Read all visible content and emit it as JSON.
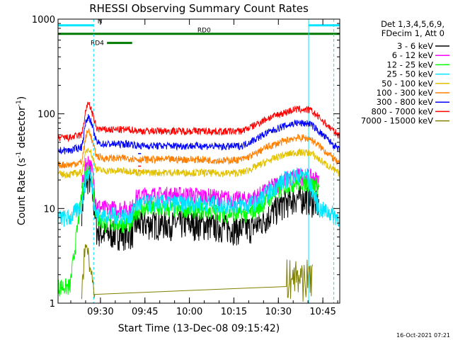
{
  "chart_data": {
    "type": "line",
    "title": "RHESSI Observing Summary Count Rates",
    "xlabel": "Start Time (13-Dec-08 09:15:42)",
    "ylabel_main": "Count Rate (s",
    "ylabel_sup1": "-1",
    "ylabel_mid": " detector",
    "ylabel_sup2": "-1",
    "ylabel_end": ")",
    "footer_stamp": "16-Oct-2021 07:21",
    "x_unit": "minutes after 09:15:42",
    "xlim": [
      0,
      95
    ],
    "ylim": [
      1,
      1000
    ],
    "yscale": "log",
    "x_ticks": [
      {
        "label": "09:30",
        "x": 14.3
      },
      {
        "label": "09:45",
        "x": 29.3
      },
      {
        "label": "10:00",
        "x": 44.3
      },
      {
        "label": "10:15",
        "x": 59.3
      },
      {
        "label": "10:30",
        "x": 74.3
      },
      {
        "label": "10:45",
        "x": 89.3
      }
    ],
    "y_ticks": [
      {
        "label": "1",
        "y": 1
      },
      {
        "label": "10",
        "y": 10
      },
      {
        "label": "100",
        "y": 100
      },
      {
        "label": "1000",
        "y": 1000
      }
    ],
    "legend": {
      "position": "right",
      "header_line1": "Det 1,3,4,5,6,9,",
      "header_line2": "FDecim 1, Att 0"
    },
    "flags": [
      {
        "label": "N",
        "color": "#00e5ff",
        "segments": [
          [
            0,
            12.0
          ],
          [
            84.5,
            95
          ]
        ],
        "level": 860
      },
      {
        "label": "RD0",
        "color": "#007a00",
        "segments": [
          [
            0,
            95
          ]
        ],
        "level": 700
      },
      {
        "label": "RD4",
        "color": "#007a00",
        "segments": [
          [
            16.5,
            25
          ]
        ],
        "level": 560
      }
    ],
    "vlines": [
      {
        "x": 0,
        "color": "#00e5ff",
        "style": "solid"
      },
      {
        "x": 12.0,
        "color": "#00e5ff",
        "style": "dashed"
      },
      {
        "x": 84.5,
        "color": "#00e5ff",
        "style": "solid"
      },
      {
        "x": 93.0,
        "color": "#00e5ff",
        "style": "dashed"
      }
    ],
    "series": [
      {
        "name": "3 - 6 keV",
        "color": "#000000",
        "x_start": 8,
        "x_end": 88,
        "x": [
          8,
          9.5,
          10.5,
          11.5,
          12.3,
          13,
          15,
          20,
          25,
          26,
          30,
          36,
          45,
          50,
          55,
          60,
          64,
          68,
          72,
          76,
          80,
          84,
          86,
          88
        ],
        "y": [
          10,
          20,
          21,
          15,
          10,
          6,
          5.5,
          5.5,
          5.5,
          6.8,
          7,
          7,
          7,
          6.8,
          6.5,
          6.2,
          6.2,
          7,
          9,
          11.5,
          13,
          13,
          12,
          11
        ]
      },
      {
        "name": "6 - 12 keV",
        "color": "#ff00ff",
        "x_start": 8,
        "x_end": 88,
        "x": [
          8,
          9.5,
          10.5,
          11.5,
          12.3,
          13,
          15,
          20,
          25,
          26,
          30,
          36,
          45,
          50,
          55,
          60,
          64,
          68,
          72,
          76,
          80,
          84,
          86,
          88
        ],
        "y": [
          17,
          30,
          32,
          25,
          17,
          11,
          10,
          10,
          10,
          13,
          14,
          14,
          14,
          13.5,
          13,
          12.5,
          12.5,
          14,
          17,
          20,
          22,
          22,
          21,
          20
        ]
      },
      {
        "name": "12 - 25 keV",
        "color": "#00ff00",
        "x_start": 0,
        "x_end": 88,
        "x": [
          0,
          4,
          8,
          9.5,
          10.5,
          11.5,
          12.3,
          13,
          15,
          20,
          25,
          26,
          30,
          36,
          45,
          50,
          55,
          60,
          64,
          68,
          72,
          76,
          80,
          84,
          86,
          88
        ],
        "y": [
          1.5,
          1.5,
          14,
          25,
          27,
          20,
          12,
          8,
          7,
          7,
          7,
          9.5,
          10,
          10,
          10,
          9.5,
          9,
          8.8,
          8.8,
          10.5,
          13.5,
          17,
          19,
          19,
          18,
          17
        ]
      },
      {
        "name": "25 - 50 keV",
        "color": "#00e5ff",
        "x_start": 0,
        "x_end": 95,
        "x": [
          0,
          4,
          8,
          9.5,
          10.5,
          11.5,
          12.3,
          13,
          15,
          20,
          25,
          26,
          30,
          36,
          45,
          50,
          55,
          60,
          64,
          68,
          72,
          76,
          80,
          84,
          88,
          92,
          95
        ],
        "y": [
          8,
          8,
          11,
          22,
          24,
          18,
          11,
          8.5,
          8.5,
          8.5,
          8.5,
          11,
          11.5,
          11.5,
          11.5,
          11.5,
          11,
          11,
          11,
          12.5,
          16,
          20,
          22.5,
          22.5,
          10,
          9,
          8
        ]
      },
      {
        "name": "50 - 100 keV",
        "color": "#e0c000",
        "x_start": 0,
        "x_end": 95,
        "x": [
          0,
          4,
          8,
          9.5,
          10.5,
          12,
          13,
          15,
          20,
          25,
          27,
          32,
          40,
          48,
          56,
          62,
          66,
          70,
          75,
          80,
          85,
          88,
          92,
          95
        ],
        "y": [
          23,
          23,
          24,
          40,
          44,
          32,
          26,
          25,
          25,
          25,
          24,
          24,
          24,
          24,
          23.5,
          24,
          27,
          31,
          36,
          39,
          39,
          33,
          27,
          23
        ]
      },
      {
        "name": "100 - 300 keV",
        "color": "#ff7f00",
        "x_start": 0,
        "x_end": 95,
        "x": [
          0,
          4,
          8,
          9.5,
          10.5,
          12,
          13,
          15,
          20,
          25,
          27,
          32,
          40,
          48,
          56,
          62,
          66,
          70,
          75,
          80,
          85,
          88,
          92,
          95
        ],
        "y": [
          29,
          29,
          31,
          60,
          68,
          45,
          36,
          34,
          34,
          34,
          33,
          33,
          33,
          33,
          32,
          33,
          37,
          44,
          50,
          56,
          55,
          46,
          36,
          29
        ]
      },
      {
        "name": "300 - 800 keV",
        "color": "#0000ff",
        "x_start": 0,
        "x_end": 95,
        "x": [
          0,
          4,
          8,
          9.5,
          10.5,
          12,
          13,
          15,
          20,
          25,
          27,
          32,
          40,
          48,
          56,
          62,
          66,
          70,
          75,
          80,
          85,
          88,
          92,
          95
        ],
        "y": [
          41,
          41,
          45,
          85,
          95,
          65,
          50,
          48,
          48,
          48,
          46,
          46,
          46,
          46,
          45,
          46,
          53,
          62,
          72,
          80,
          79,
          65,
          50,
          41
        ]
      },
      {
        "name": "800 - 7000 keV",
        "color": "#ff0000",
        "x_start": 0,
        "x_end": 95,
        "x": [
          0,
          4,
          8,
          9.5,
          10.5,
          12,
          13,
          15,
          20,
          25,
          27,
          32,
          40,
          48,
          56,
          62,
          66,
          70,
          75,
          80,
          85,
          88,
          92,
          95
        ],
        "y": [
          56,
          56,
          60,
          115,
          130,
          90,
          70,
          68,
          68,
          68,
          66,
          66,
          66,
          66,
          65,
          66,
          75,
          88,
          100,
          112,
          110,
          92,
          70,
          58
        ]
      },
      {
        "name": "7000 - 15000 keV",
        "color": "#808000",
        "x_start": 8,
        "x_end": 88,
        "x": [
          8,
          9,
          10,
          11,
          12.5
        ],
        "y": [
          1.5,
          3.5,
          4,
          2.5,
          1
        ]
      }
    ],
    "gaps": [
      {
        "series": "800 - 7000 keV",
        "x0": 27,
        "x1": 28,
        "y": 28
      },
      {
        "series": "300 - 800 keV",
        "x0": 27,
        "x1": 28,
        "y": 38
      },
      {
        "series": "100 - 300 keV",
        "x0": 27,
        "x1": 28,
        "y": 25
      }
    ]
  }
}
